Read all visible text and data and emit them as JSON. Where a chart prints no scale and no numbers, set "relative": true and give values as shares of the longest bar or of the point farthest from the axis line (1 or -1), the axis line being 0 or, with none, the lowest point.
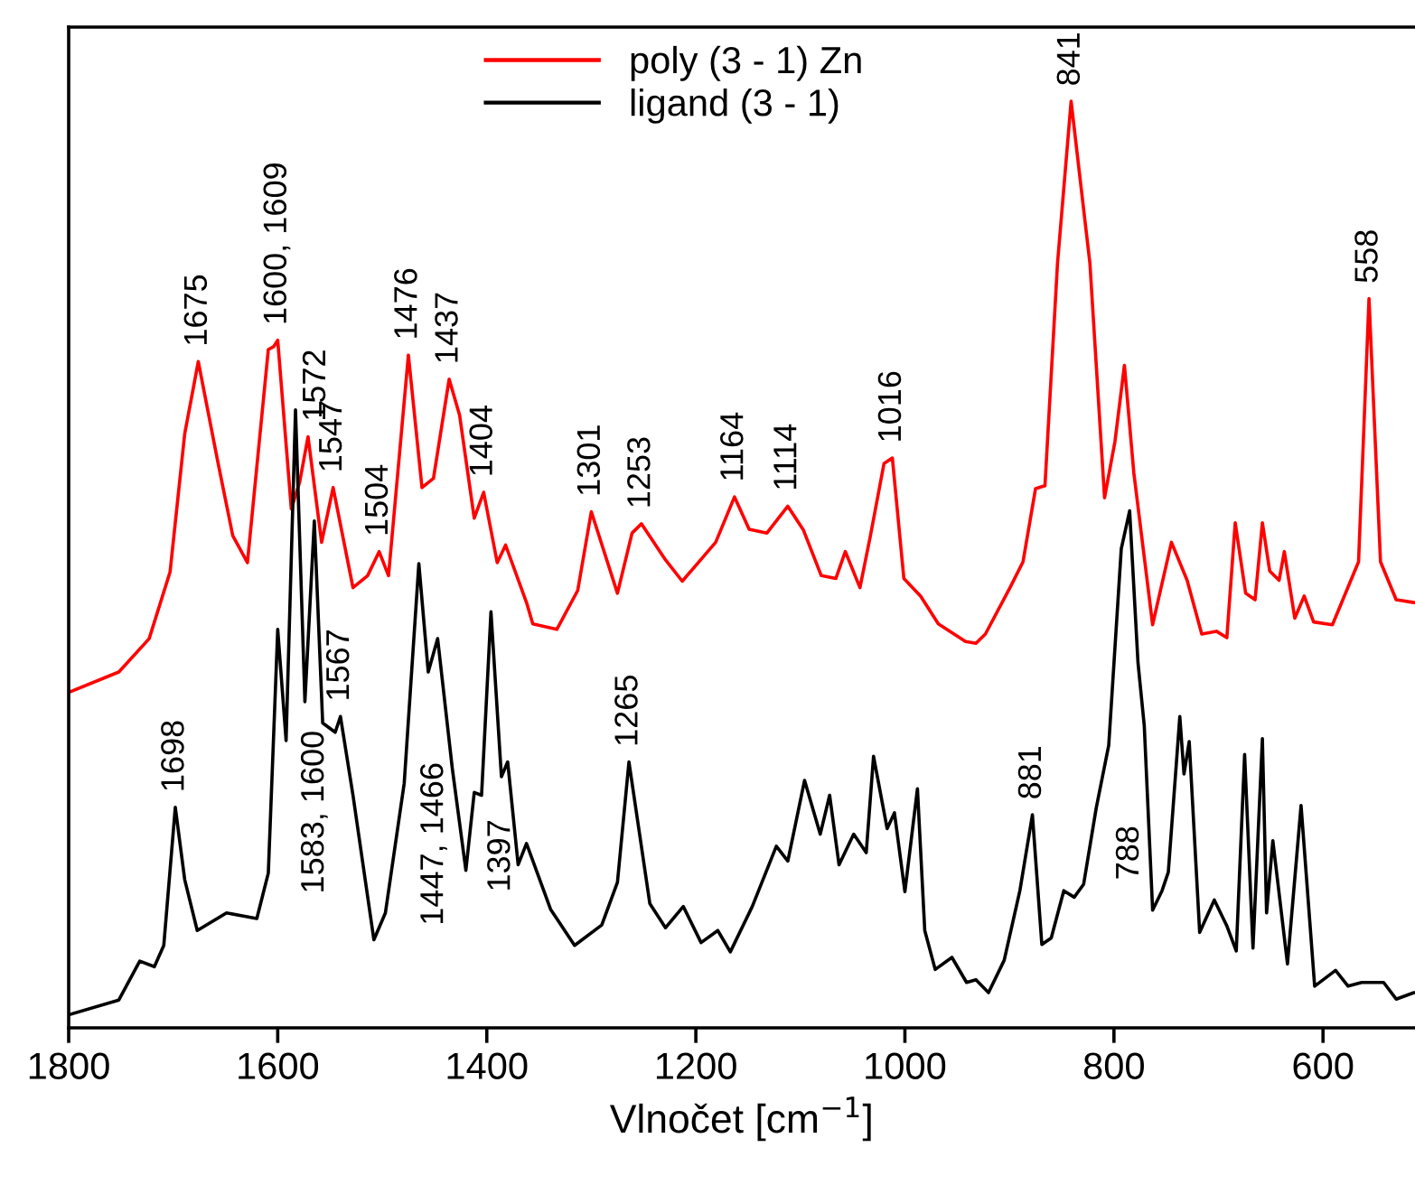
{
  "chart_data": {
    "type": "line",
    "xlabel": "Vlnočet [cm$^{−1}$]",
    "relative": true,
    "tick_labels": "x",
    "legend": "top",
    "grid": false,
    "line_style": "solid",
    "marker": "none",
    "xlim": [
      1800,
      512
    ],
    "xticks": [
      1800,
      1600,
      1400,
      1200,
      1000,
      800,
      600
    ],
    "series": [
      {
        "name": "poly (3 - 1) Zn",
        "color": "#ff0000",
        "x": [
          1800,
          1752,
          1723,
          1703,
          1689,
          1676,
          1657,
          1643,
          1629,
          1609,
          1604,
          1600,
          1587,
          1579,
          1571,
          1558,
          1547,
          1528,
          1514,
          1503,
          1494,
          1475,
          1462,
          1451,
          1436,
          1426,
          1412,
          1403,
          1390,
          1382,
          1362,
          1356,
          1333,
          1313,
          1300,
          1275,
          1261,
          1252,
          1229,
          1213,
          1181,
          1163,
          1149,
          1132,
          1112,
          1097,
          1080,
          1066,
          1057,
          1043,
          1033,
          1020,
          1012,
          1001,
          985,
          968,
          942,
          932,
          923,
          899,
          887,
          875,
          866,
          854,
          841,
          823,
          809,
          799,
          790,
          781,
          763,
          745,
          730,
          716,
          702,
          692,
          684,
          674,
          665,
          658,
          651,
          642,
          637,
          627,
          618,
          609,
          591,
          566,
          556,
          545,
          530,
          513
        ],
        "values": [
          0.362,
          0.384,
          0.42,
          0.492,
          0.641,
          0.719,
          0.609,
          0.531,
          0.502,
          0.732,
          0.735,
          0.742,
          0.56,
          0.589,
          0.638,
          0.524,
          0.583,
          0.475,
          0.488,
          0.514,
          0.488,
          0.726,
          0.583,
          0.593,
          0.7,
          0.661,
          0.55,
          0.578,
          0.502,
          0.521,
          0.459,
          0.436,
          0.43,
          0.472,
          0.557,
          0.469,
          0.534,
          0.544,
          0.505,
          0.482,
          0.524,
          0.573,
          0.538,
          0.534,
          0.563,
          0.537,
          0.488,
          0.485,
          0.514,
          0.475,
          0.531,
          0.609,
          0.615,
          0.485,
          0.466,
          0.436,
          0.417,
          0.415,
          0.425,
          0.476,
          0.503,
          0.582,
          0.585,
          0.825,
          1.0,
          0.825,
          0.572,
          0.633,
          0.715,
          0.599,
          0.435,
          0.524,
          0.483,
          0.425,
          0.428,
          0.421,
          0.545,
          0.469,
          0.462,
          0.545,
          0.493,
          0.483,
          0.514,
          0.442,
          0.466,
          0.438,
          0.435,
          0.503,
          0.787,
          0.503,
          0.462,
          0.459
        ]
      },
      {
        "name": "ligand (3 - 1)",
        "color": "#000000",
        "x": [
          1800,
          1752,
          1732,
          1718,
          1709,
          1698,
          1689,
          1677,
          1649,
          1620,
          1609,
          1600,
          1592,
          1583,
          1574,
          1565,
          1557,
          1545,
          1540,
          1528,
          1508,
          1497,
          1479,
          1465,
          1456,
          1447,
          1433,
          1420,
          1412,
          1405,
          1396,
          1386,
          1380,
          1370,
          1362,
          1339,
          1316,
          1290,
          1275,
          1264,
          1244,
          1229,
          1212,
          1195,
          1179,
          1167,
          1146,
          1123,
          1112,
          1096,
          1081,
          1072,
          1063,
          1049,
          1037,
          1030,
          1017,
          1010,
          1000,
          988,
          981,
          971,
          955,
          941,
          932,
          920,
          905,
          890,
          878,
          869,
          860,
          848,
          838,
          829,
          817,
          805,
          793,
          785,
          777,
          771,
          763,
          754,
          748,
          737,
          733,
          728,
          718,
          704,
          692,
          683,
          675,
          667,
          658,
          654,
          648,
          634,
          621,
          608,
          588,
          576,
          563,
          542,
          530,
          513
        ],
        "values": [
          0.014,
          0.03,
          0.072,
          0.066,
          0.089,
          0.238,
          0.16,
          0.105,
          0.124,
          0.118,
          0.167,
          0.43,
          0.31,
          0.667,
          0.352,
          0.547,
          0.329,
          0.319,
          0.336,
          0.251,
          0.095,
          0.124,
          0.264,
          0.501,
          0.384,
          0.42,
          0.28,
          0.17,
          0.254,
          0.251,
          0.449,
          0.271,
          0.287,
          0.176,
          0.199,
          0.128,
          0.089,
          0.111,
          0.157,
          0.287,
          0.134,
          0.108,
          0.131,
          0.092,
          0.105,
          0.082,
          0.131,
          0.196,
          0.18,
          0.267,
          0.209,
          0.251,
          0.176,
          0.209,
          0.189,
          0.293,
          0.215,
          0.232,
          0.147,
          0.258,
          0.105,
          0.063,
          0.076,
          0.049,
          0.052,
          0.038,
          0.073,
          0.148,
          0.23,
          0.09,
          0.097,
          0.148,
          0.141,
          0.155,
          0.237,
          0.305,
          0.517,
          0.558,
          0.394,
          0.326,
          0.127,
          0.148,
          0.168,
          0.336,
          0.274,
          0.309,
          0.103,
          0.138,
          0.11,
          0.083,
          0.295,
          0.086,
          0.312,
          0.124,
          0.202,
          0.069,
          0.24,
          0.045,
          0.062,
          0.045,
          0.049,
          0.049,
          0.031,
          0.038
        ]
      }
    ],
    "annotations": [
      {
        "text": "1675",
        "x": 1676,
        "y": 0.719
      },
      {
        "text": "1600, 1609",
        "x": 1600,
        "y": 0.742
      },
      {
        "text": "1572",
        "x": 1571,
        "y": 0.638
      },
      {
        "text": "1547",
        "x": 1547,
        "y": 0.583
      },
      {
        "text": "1504",
        "x": 1503,
        "y": 0.514
      },
      {
        "text": "1476",
        "x": 1475,
        "y": 0.726
      },
      {
        "text": "1437",
        "x": 1436,
        "y": 0.7
      },
      {
        "text": "1404",
        "x": 1403,
        "y": 0.578
      },
      {
        "text": "1301",
        "x": 1300,
        "y": 0.557
      },
      {
        "text": "1253",
        "x": 1252,
        "y": 0.544
      },
      {
        "text": "1164",
        "x": 1163,
        "y": 0.573
      },
      {
        "text": "1114",
        "x": 1112,
        "y": 0.563
      },
      {
        "text": "1016",
        "x": 1012,
        "y": 0.615
      },
      {
        "text": "841",
        "x": 841,
        "y": 1.0
      },
      {
        "text": "558",
        "x": 556,
        "y": 0.787
      },
      {
        "text": "1698",
        "x": 1698,
        "y": 0.238
      },
      {
        "text": "1567",
        "x": 1540,
        "y": 0.336
      },
      {
        "text": "1583, 1600",
        "x": 1557,
        "y": 0.329
      },
      {
        "text": "1447, 1466",
        "x": 1456,
        "y": 0.384
      },
      {
        "text": "1397",
        "x": 1386,
        "y": 0.271
      },
      {
        "text": "1265",
        "x": 1264,
        "y": 0.287
      },
      {
        "text": "881",
        "x": 878,
        "y": 0.23
      },
      {
        "text": "788",
        "x": 763,
        "y": 0.127
      }
    ]
  }
}
